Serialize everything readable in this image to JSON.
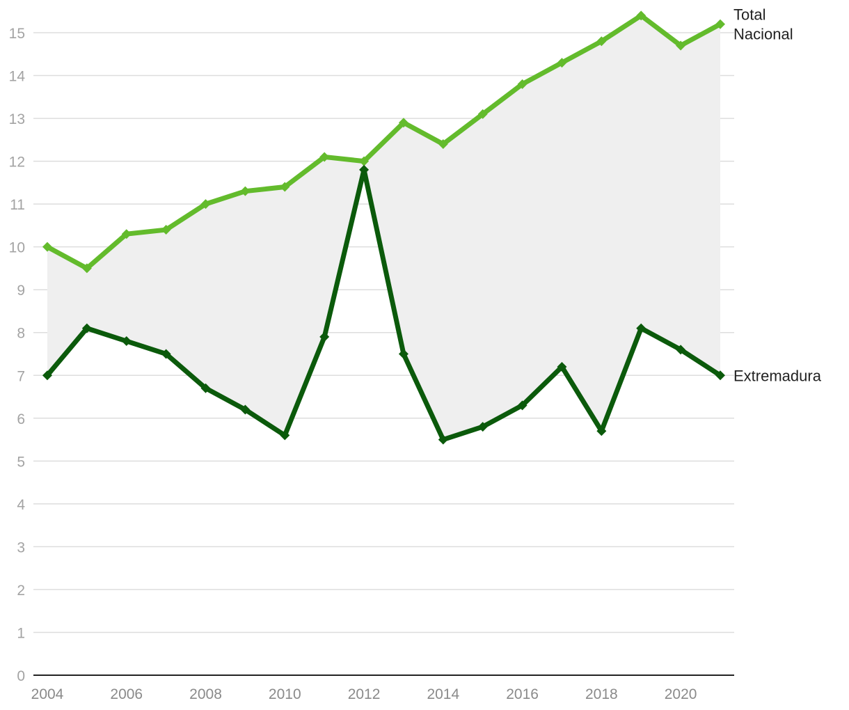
{
  "chart_data": {
    "type": "line",
    "title": "",
    "xlabel": "",
    "ylabel": "",
    "x": [
      2004,
      2005,
      2006,
      2007,
      2008,
      2009,
      2010,
      2011,
      2012,
      2013,
      2014,
      2015,
      2016,
      2017,
      2018,
      2019,
      2020,
      2021
    ],
    "xticks": [
      2004,
      2006,
      2008,
      2010,
      2012,
      2014,
      2016,
      2018,
      2020
    ],
    "ylim": [
      0,
      15
    ],
    "yticks": [
      0,
      1,
      2,
      3,
      4,
      5,
      6,
      7,
      8,
      9,
      10,
      11,
      12,
      13,
      14,
      15
    ],
    "grid": true,
    "legend": "inline labels at right end of lines",
    "shaded_area_between_series": true,
    "series": [
      {
        "name": "Total Nacional",
        "label_lines": [
          "Total",
          "Nacional"
        ],
        "color": "#63bb2c",
        "values": [
          10.0,
          9.5,
          10.3,
          10.4,
          11.0,
          11.3,
          11.4,
          12.1,
          12.0,
          12.9,
          12.4,
          13.1,
          13.8,
          14.3,
          14.8,
          15.4,
          14.7,
          15.2
        ]
      },
      {
        "name": "Extremadura",
        "label_lines": [
          "Extremadura"
        ],
        "color": "#0b5a0b",
        "values": [
          7.0,
          8.1,
          7.8,
          7.5,
          6.7,
          6.2,
          5.6,
          7.9,
          11.8,
          7.5,
          5.5,
          5.8,
          6.3,
          7.2,
          5.7,
          8.1,
          7.6,
          7.0
        ]
      }
    ],
    "fill_color": "#efefef",
    "grid_color": "#dddddd",
    "axis_color": "#222222"
  }
}
